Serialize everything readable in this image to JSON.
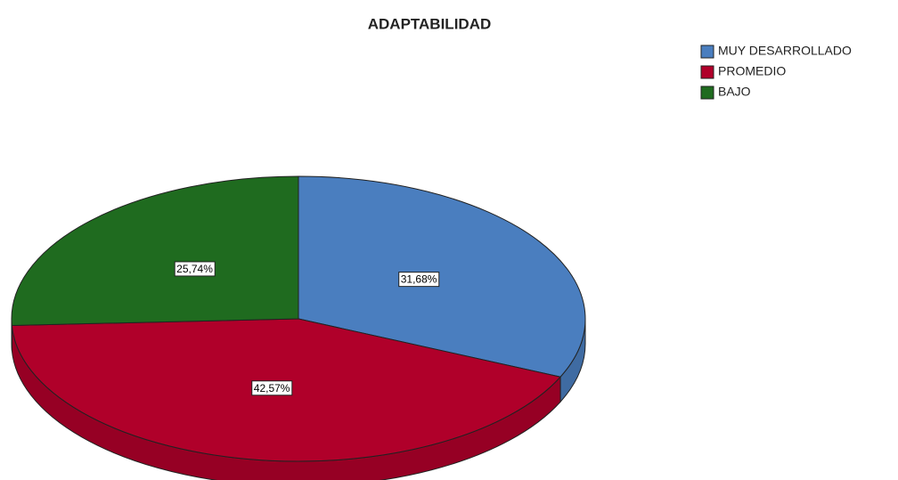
{
  "chart_data": {
    "type": "pie",
    "title": "ADAPTABILIDAD",
    "categories": [
      "MUY DESARROLLADO",
      "PROMEDIO",
      "BAJO"
    ],
    "values": [
      31.68,
      42.57,
      25.74
    ],
    "value_labels": [
      "31,68%",
      "42,57%",
      "25,74%"
    ],
    "colors": [
      "#4a7ebf",
      "#b0002a",
      "#1f6b1f"
    ],
    "legend": "upper right"
  }
}
